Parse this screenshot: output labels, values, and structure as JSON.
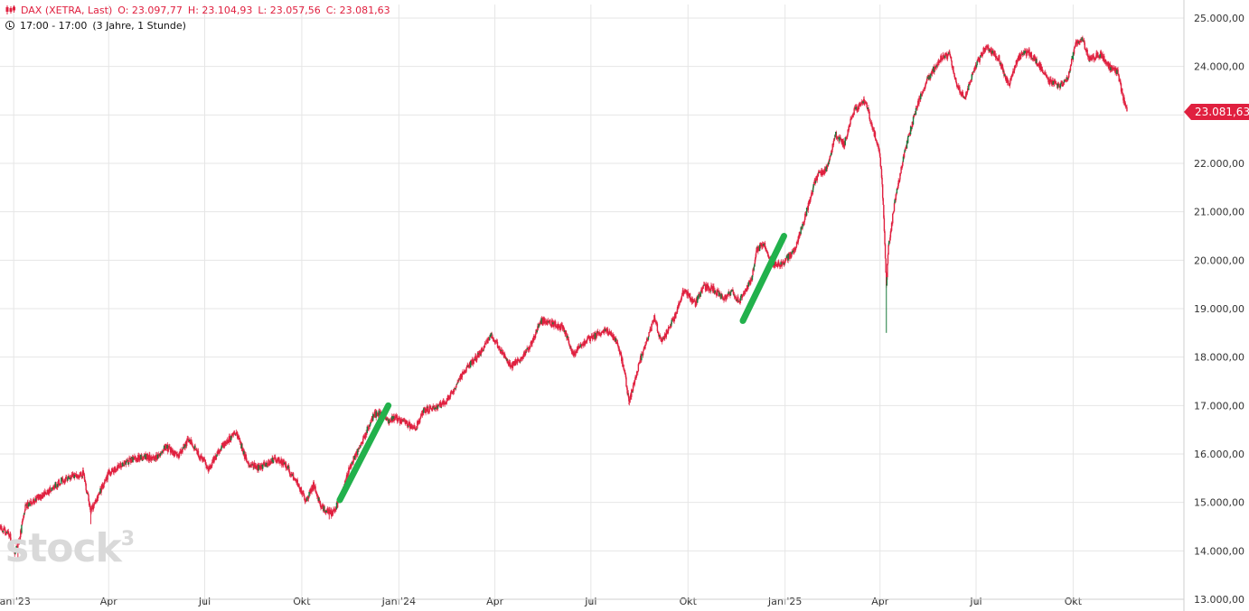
{
  "header": {
    "symbol": "DAX (XETRA, Last)",
    "open": "O: 23.097,77",
    "high": "H: 23.104,93",
    "low": "L: 23.057,56",
    "close": "C: 23.081,63",
    "session": "17:00 - 17:00",
    "range": "(3 Jahre, 1 Stunde)"
  },
  "logo": {
    "text": "stock",
    "superscript": "3"
  },
  "last_price_label": "23.081,63",
  "colors": {
    "candles": "#e0203f",
    "up_candles": "#1a7a3c",
    "projection": "#22b14c",
    "grid": "#e6e6e6",
    "badge": "#e0203f"
  },
  "chart_data": {
    "type": "line",
    "style": "candlestick",
    "ylim": [
      13000,
      25000
    ],
    "xlim": [
      "2022-12-19",
      "2026-01-14"
    ],
    "y_ticks": [
      13000,
      14000,
      15000,
      16000,
      17000,
      18000,
      19000,
      20000,
      21000,
      22000,
      23000,
      24000,
      25000
    ],
    "y_tick_labels": [
      "13.000,00",
      "14.000,00",
      "15.000,00",
      "16.000,00",
      "17.000,00",
      "18.000,00",
      "19.000,00",
      "20.000,00",
      "21.000,00",
      "22.000,00",
      "23.000,00",
      "24.000,00",
      "25.000,00"
    ],
    "x_ticks": [
      {
        "date": "2023-01-01",
        "label": "Jan '23"
      },
      {
        "date": "2023-04-01",
        "label": "Apr"
      },
      {
        "date": "2023-07-01",
        "label": "Jul"
      },
      {
        "date": "2023-10-01",
        "label": "Okt"
      },
      {
        "date": "2024-01-01",
        "label": "Jan '24"
      },
      {
        "date": "2024-04-01",
        "label": "Apr"
      },
      {
        "date": "2024-07-01",
        "label": "Jul"
      },
      {
        "date": "2024-10-01",
        "label": "Okt"
      },
      {
        "date": "2025-01-01",
        "label": "Jan '25"
      },
      {
        "date": "2025-04-01",
        "label": "Apr"
      },
      {
        "date": "2025-07-01",
        "label": "Jul"
      },
      {
        "date": "2025-10-01",
        "label": "Okt"
      }
    ],
    "grid": true,
    "price_path": [
      [
        "2022-12-19",
        14450
      ],
      [
        "2022-12-28",
        14350
      ],
      [
        "2023-01-02",
        13950
      ],
      [
        "2023-01-06",
        14200
      ],
      [
        "2023-01-12",
        14900
      ],
      [
        "2023-01-20",
        15050
      ],
      [
        "2023-02-01",
        15200
      ],
      [
        "2023-02-15",
        15450
      ],
      [
        "2023-03-01",
        15550
      ],
      [
        "2023-03-08",
        15600
      ],
      [
        "2023-03-15",
        14800
      ],
      [
        "2023-03-22",
        15150
      ],
      [
        "2023-04-01",
        15600
      ],
      [
        "2023-04-20",
        15850
      ],
      [
        "2023-05-05",
        15950
      ],
      [
        "2023-05-15",
        15900
      ],
      [
        "2023-05-25",
        16150
      ],
      [
        "2023-06-05",
        15950
      ],
      [
        "2023-06-16",
        16300
      ],
      [
        "2023-06-26",
        15950
      ],
      [
        "2023-07-05",
        15700
      ],
      [
        "2023-07-15",
        16100
      ],
      [
        "2023-07-31",
        16450
      ],
      [
        "2023-08-10",
        15850
      ],
      [
        "2023-08-22",
        15700
      ],
      [
        "2023-09-05",
        15900
      ],
      [
        "2023-09-15",
        15800
      ],
      [
        "2023-09-28",
        15350
      ],
      [
        "2023-10-05",
        15050
      ],
      [
        "2023-10-12",
        15350
      ],
      [
        "2023-10-20",
        14900
      ],
      [
        "2023-10-30",
        14750
      ],
      [
        "2023-11-08",
        15150
      ],
      [
        "2023-11-15",
        15700
      ],
      [
        "2023-11-28",
        16300
      ],
      [
        "2023-12-08",
        16800
      ],
      [
        "2023-12-15",
        16850
      ],
      [
        "2023-12-22",
        16700
      ],
      [
        "2023-12-29",
        16750
      ],
      [
        "2024-01-10",
        16600
      ],
      [
        "2024-01-17",
        16550
      ],
      [
        "2024-01-25",
        16900
      ],
      [
        "2024-02-05",
        16950
      ],
      [
        "2024-02-15",
        17100
      ],
      [
        "2024-02-26",
        17500
      ],
      [
        "2024-03-06",
        17800
      ],
      [
        "2024-03-15",
        18000
      ],
      [
        "2024-03-28",
        18450
      ],
      [
        "2024-04-05",
        18200
      ],
      [
        "2024-04-16",
        17800
      ],
      [
        "2024-04-26",
        18000
      ],
      [
        "2024-05-06",
        18300
      ],
      [
        "2024-05-15",
        18750
      ],
      [
        "2024-05-25",
        18700
      ],
      [
        "2024-06-05",
        18600
      ],
      [
        "2024-06-14",
        18050
      ],
      [
        "2024-06-24",
        18300
      ],
      [
        "2024-07-05",
        18450
      ],
      [
        "2024-07-16",
        18550
      ],
      [
        "2024-07-26",
        18300
      ],
      [
        "2024-08-02",
        17700
      ],
      [
        "2024-08-06",
        17050
      ],
      [
        "2024-08-16",
        17900
      ],
      [
        "2024-08-30",
        18800
      ],
      [
        "2024-09-06",
        18300
      ],
      [
        "2024-09-20",
        18900
      ],
      [
        "2024-09-27",
        19400
      ],
      [
        "2024-10-08",
        19100
      ],
      [
        "2024-10-16",
        19450
      ],
      [
        "2024-10-25",
        19400
      ],
      [
        "2024-11-04",
        19200
      ],
      [
        "2024-11-11",
        19350
      ],
      [
        "2024-11-18",
        19150
      ],
      [
        "2024-11-22",
        19300
      ],
      [
        "2024-11-30",
        19600
      ],
      [
        "2024-12-05",
        20200
      ],
      [
        "2024-12-12",
        20350
      ],
      [
        "2024-12-19",
        19950
      ],
      [
        "2024-12-27",
        19900
      ],
      [
        "2025-01-10",
        20200
      ],
      [
        "2025-01-20",
        20900
      ],
      [
        "2025-01-30",
        21700
      ],
      [
        "2025-02-10",
        21900
      ],
      [
        "2025-02-18",
        22600
      ],
      [
        "2025-02-26",
        22400
      ],
      [
        "2025-03-06",
        23050
      ],
      [
        "2025-03-18",
        23300
      ],
      [
        "2025-03-24",
        22800
      ],
      [
        "2025-03-31",
        22300
      ],
      [
        "2025-04-03",
        21600
      ],
      [
        "2025-04-07",
        19500
      ],
      [
        "2025-04-09",
        20300
      ],
      [
        "2025-04-15",
        21200
      ],
      [
        "2025-04-24",
        22200
      ],
      [
        "2025-05-06",
        23200
      ],
      [
        "2025-05-15",
        23700
      ],
      [
        "2025-05-28",
        24150
      ],
      [
        "2025-06-06",
        24250
      ],
      [
        "2025-06-13",
        23600
      ],
      [
        "2025-06-20",
        23350
      ],
      [
        "2025-06-30",
        24000
      ],
      [
        "2025-07-10",
        24400
      ],
      [
        "2025-07-22",
        24200
      ],
      [
        "2025-08-01",
        23600
      ],
      [
        "2025-08-10",
        24200
      ],
      [
        "2025-08-20",
        24300
      ],
      [
        "2025-08-29",
        24050
      ],
      [
        "2025-09-08",
        23700
      ],
      [
        "2025-09-18",
        23600
      ],
      [
        "2025-09-26",
        23750
      ],
      [
        "2025-10-03",
        24450
      ],
      [
        "2025-10-09",
        24600
      ],
      [
        "2025-10-16",
        24150
      ],
      [
        "2025-10-27",
        24250
      ],
      [
        "2025-11-04",
        24000
      ],
      [
        "2025-11-12",
        23900
      ],
      [
        "2025-11-18",
        23300
      ],
      [
        "2025-11-21",
        23081.63
      ]
    ],
    "spike_lows": [
      [
        "2023-01-05",
        13850
      ],
      [
        "2023-03-15",
        14550
      ],
      [
        "2023-10-27",
        14650
      ],
      [
        "2024-08-06",
        17020
      ],
      [
        "2025-04-07",
        18500
      ]
    ],
    "projections": [
      {
        "from": [
          "2023-11-06",
          15050
        ],
        "to": [
          "2023-12-22",
          17000
        ]
      },
      {
        "from": [
          "2024-11-22",
          18750
        ],
        "to": [
          "2024-12-31",
          20500
        ]
      }
    ]
  }
}
